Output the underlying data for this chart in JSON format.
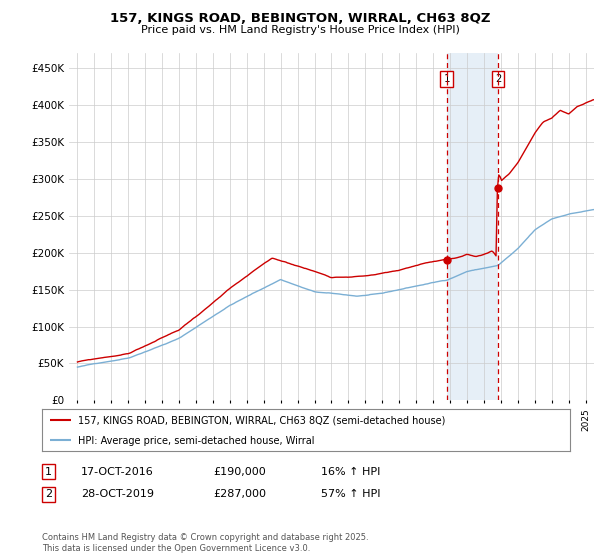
{
  "title": "157, KINGS ROAD, BEBINGTON, WIRRAL, CH63 8QZ",
  "subtitle": "Price paid vs. HM Land Registry's House Price Index (HPI)",
  "ylabel_ticks": [
    "£0",
    "£50K",
    "£100K",
    "£150K",
    "£200K",
    "£250K",
    "£300K",
    "£350K",
    "£400K",
    "£450K"
  ],
  "ytick_values": [
    0,
    50000,
    100000,
    150000,
    200000,
    250000,
    300000,
    350000,
    400000,
    450000
  ],
  "xmin": 1994.5,
  "xmax": 2025.5,
  "ymin": 0,
  "ymax": 470000,
  "sale1_date": 2016.8,
  "sale1_price": 190000,
  "sale1_label": "1",
  "sale2_date": 2019.83,
  "sale2_price": 287000,
  "sale2_label": "2",
  "legend_line1": "157, KINGS ROAD, BEBINGTON, WIRRAL, CH63 8QZ (semi-detached house)",
  "legend_line2": "HPI: Average price, semi-detached house, Wirral",
  "table_row1": [
    "1",
    "17-OCT-2016",
    "£190,000",
    "16% ↑ HPI"
  ],
  "table_row2": [
    "2",
    "28-OCT-2019",
    "£287,000",
    "57% ↑ HPI"
  ],
  "footnote": "Contains HM Land Registry data © Crown copyright and database right 2025.\nThis data is licensed under the Open Government Licence v3.0.",
  "hpi_color": "#7bafd4",
  "price_color": "#cc0000",
  "shade_color": "#dce9f5",
  "vline_color": "#cc0000",
  "box_color": "#cc0000",
  "grid_color": "#cccccc",
  "background_color": "#ffffff"
}
